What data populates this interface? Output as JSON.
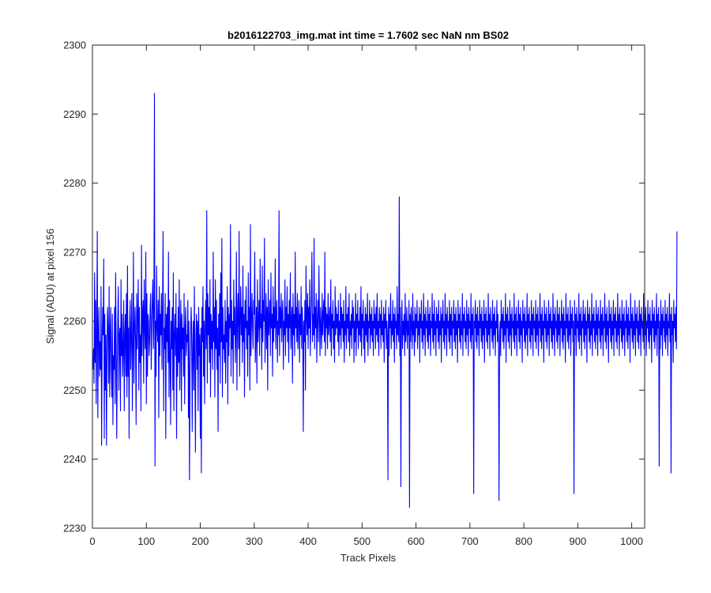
{
  "chart_data": {
    "type": "line",
    "title": "b2016122703_img.mat int time = 1.7602 sec  NaN nm BS02",
    "xlabel": "Track Pixels",
    "ylabel": "Signal (ADU) at pixel 156",
    "xlim": [
      0,
      1024
    ],
    "ylim": [
      2230,
      2300
    ],
    "x_ticks": [
      0,
      100,
      200,
      300,
      400,
      500,
      600,
      700,
      800,
      900,
      1000
    ],
    "y_ticks": [
      2230,
      2240,
      2250,
      2260,
      2270,
      2280,
      2290,
      2300
    ],
    "grid": false,
    "legend": "none",
    "series": [
      {
        "color": "#0000ff",
        "x_start": 1,
        "x_step": 1,
        "values": [
          2253,
          2256,
          2251,
          2267,
          2254,
          2263,
          2248,
          2258,
          2273,
          2246,
          2258,
          2262,
          2252,
          2257,
          2253,
          2265,
          2242,
          2256,
          2262,
          2258,
          2269,
          2243,
          2261,
          2250,
          2258,
          2242,
          2255,
          2262,
          2259,
          2251,
          2265,
          2249,
          2258,
          2262,
          2253,
          2249,
          2261,
          2245,
          2255,
          2253,
          2262,
          2248,
          2267,
          2257,
          2243,
          2254,
          2260,
          2265,
          2250,
          2258,
          2259,
          2247,
          2266,
          2255,
          2261,
          2252,
          2256,
          2263,
          2247,
          2258,
          2261,
          2252,
          2264,
          2249,
          2268,
          2252,
          2259,
          2243,
          2260,
          2263,
          2253,
          2258,
          2264,
          2247,
          2256,
          2270,
          2251,
          2259,
          2262,
          2257,
          2245,
          2264,
          2256,
          2261,
          2266,
          2250,
          2262,
          2254,
          2258,
          2247,
          2271,
          2255,
          2261,
          2263,
          2251,
          2266,
          2259,
          2256,
          2270,
          2248,
          2264,
          2252,
          2261,
          2260,
          2255,
          2257,
          2262,
          2264,
          2253,
          2259,
          2263,
          2266,
          2256,
          2261,
          2293,
          2239,
          2260,
          2252,
          2268,
          2259,
          2257,
          2263,
          2246,
          2265,
          2255,
          2261,
          2258,
          2264,
          2253,
          2262,
          2273,
          2247,
          2259,
          2256,
          2264,
          2243,
          2261,
          2257,
          2262,
          2254,
          2270,
          2249,
          2263,
          2255,
          2245,
          2260,
          2256,
          2262,
          2250,
          2267,
          2247,
          2258,
          2261,
          2255,
          2264,
          2243,
          2259,
          2252,
          2262,
          2254,
          2266,
          2250,
          2258,
          2263,
          2247,
          2261,
          2256,
          2259,
          2252,
          2264,
          2248,
          2259,
          2262,
          2255,
          2258,
          2257,
          2263,
          2246,
          2260,
          2237,
          2252,
          2257,
          2262,
          2259,
          2244,
          2256,
          2260,
          2250,
          2265,
          2254,
          2241,
          2258,
          2261,
          2253,
          2260,
          2247,
          2262,
          2255,
          2258,
          2243,
          2259,
          2238,
          2262,
          2257,
          2265,
          2252,
          2260,
          2248,
          2259,
          2263,
          2256,
          2276,
          2251,
          2264,
          2258,
          2262,
          2254,
          2266,
          2249,
          2261,
          2256,
          2260,
          2253,
          2270,
          2257,
          2262,
          2249,
          2266,
          2256,
          2263,
          2253,
          2259,
          2244,
          2261,
          2255,
          2264,
          2251,
          2267,
          2257,
          2272,
          2249,
          2262,
          2256,
          2258,
          2254,
          2263,
          2251,
          2260,
          2257,
          2265,
          2248,
          2262,
          2255,
          2261,
          2259,
          2274,
          2252,
          2263,
          2256,
          2260,
          2251,
          2266,
          2258,
          2262,
          2254,
          2259,
          2270,
          2250,
          2261,
          2264,
          2256,
          2273,
          2252,
          2260,
          2265,
          2258,
          2262,
          2254,
          2268,
          2257,
          2261,
          2249,
          2263,
          2259,
          2265,
          2256,
          2260,
          2252,
          2267,
          2258,
          2262,
          2250,
          2274,
          2255,
          2260,
          2264,
          2259,
          2256,
          2263,
          2261,
          2270,
          2254,
          2258,
          2262,
          2251,
          2266,
          2257,
          2260,
          2263,
          2255,
          2269,
          2259,
          2261,
          2253,
          2268,
          2257,
          2263,
          2260,
          2272,
          2254,
          2259,
          2264,
          2256,
          2262,
          2250,
          2266,
          2258,
          2260,
          2263,
          2255,
          2267,
          2259,
          2261,
          2252,
          2265,
          2257,
          2262,
          2259,
          2269,
          2256,
          2261,
          2263,
          2254,
          2260,
          2258,
          2276,
          2255,
          2262,
          2259,
          2264,
          2257,
          2261,
          2263,
          2253,
          2260,
          2258,
          2266,
          2255,
          2262,
          2259,
          2265,
          2257,
          2261,
          2254,
          2263,
          2259,
          2267,
          2256,
          2260,
          2262,
          2251,
          2264,
          2258,
          2261,
          2255,
          2270,
          2259,
          2262,
          2257,
          2264,
          2256,
          2260,
          2263,
          2254,
          2261,
          2258,
          2265,
          2256,
          2262,
          2259,
          2244,
          2260,
          2257,
          2263,
          2250,
          2268,
          2261,
          2258,
          2264,
          2256,
          2262,
          2259,
          2266,
          2255,
          2260,
          2263,
          2270,
          2257,
          2261,
          2258,
          2272,
          2256,
          2262,
          2259,
          2264,
          2254,
          2260,
          2263,
          2257,
          2268,
          2261,
          2255,
          2262,
          2259,
          2256,
          2264,
          2258,
          2261,
          2263,
          2257,
          2270,
          2255,
          2262,
          2259,
          2261,
          2256,
          2264,
          2258,
          2260,
          2262,
          2257,
          2266,
          2255,
          2261,
          2259,
          2263,
          2256,
          2260,
          2254,
          2265,
          2258,
          2262,
          2259,
          2261,
          2257,
          2263,
          2255,
          2260,
          2258,
          2264,
          2256,
          2262,
          2259,
          2261,
          2257,
          2263,
          2254,
          2260,
          2258,
          2265,
          2256,
          2261,
          2259,
          2262,
          2257,
          2264,
          2255,
          2260,
          2258,
          2261,
          2256,
          2263,
          2259,
          2262,
          2254,
          2260,
          2257,
          2264,
          2255,
          2261,
          2259,
          2263,
          2256,
          2260,
          2258,
          2262,
          2257,
          2265,
          2255,
          2261,
          2259,
          2263,
          2256,
          2260,
          2254,
          2262,
          2258,
          2261,
          2257,
          2264,
          2255,
          2260,
          2259,
          2263,
          2256,
          2261,
          2258,
          2262,
          2257,
          2260,
          2255,
          2263,
          2259,
          2261,
          2256,
          2262,
          2258,
          2264,
          2257,
          2260,
          2255,
          2262,
          2259,
          2261,
          2256,
          2263,
          2258,
          2260,
          2257,
          2262,
          2254,
          2261,
          2259,
          2263,
          2256,
          2260,
          2258,
          2237,
          2262,
          2255,
          2261,
          2259,
          2264,
          2256,
          2260,
          2258,
          2263,
          2257,
          2261,
          2254,
          2262,
          2259,
          2260,
          2256,
          2265,
          2258,
          2261,
          2257,
          2278,
          2255,
          2262,
          2236,
          2259,
          2263,
          2256,
          2260,
          2258,
          2261,
          2255,
          2264,
          2257,
          2259,
          2262,
          2256,
          2260,
          2258,
          2263,
          2233,
          2261,
          2257,
          2262,
          2259,
          2256,
          2264,
          2258,
          2260,
          2255,
          2262,
          2257,
          2261,
          2259,
          2263,
          2256,
          2260,
          2258,
          2262,
          2254,
          2261,
          2259,
          2263,
          2257,
          2260,
          2256,
          2264,
          2258,
          2261,
          2255,
          2262,
          2259,
          2260,
          2257,
          2263,
          2256,
          2261,
          2258,
          2262,
          2255,
          2260,
          2259,
          2264,
          2257,
          2261,
          2256,
          2263,
          2258,
          2260,
          2255,
          2262,
          2259,
          2261,
          2257,
          2263,
          2256,
          2260,
          2258,
          2262,
          2254,
          2261,
          2259,
          2263,
          2257,
          2260,
          2256,
          2264,
          2258,
          2261,
          2255,
          2262,
          2259,
          2260,
          2257,
          2263,
          2256,
          2261,
          2258,
          2262,
          2255,
          2260,
          2259,
          2263,
          2257,
          2261,
          2256,
          2262,
          2258,
          2260,
          2254,
          2263,
          2259,
          2261,
          2257,
          2262,
          2256,
          2260,
          2258,
          2264,
          2255,
          2261,
          2259,
          2262,
          2257,
          2260,
          2256,
          2263,
          2258,
          2261,
          2255,
          2262,
          2259,
          2260,
          2257,
          2264,
          2256,
          2261,
          2258,
          2262,
          2235,
          2260,
          2259,
          2263,
          2257,
          2261,
          2256,
          2262,
          2258,
          2260,
          2255,
          2263,
          2259,
          2261,
          2257,
          2262,
          2256,
          2260,
          2258,
          2263,
          2254,
          2261,
          2259,
          2262,
          2257,
          2260,
          2256,
          2264,
          2258,
          2261,
          2255,
          2262,
          2259,
          2260,
          2257,
          2263,
          2256,
          2261,
          2258,
          2262,
          2255,
          2260,
          2259,
          2263,
          2257,
          2261,
          2256,
          2234,
          2258,
          2260,
          2255,
          2263,
          2259,
          2261,
          2257,
          2262,
          2256,
          2260,
          2258,
          2264,
          2254,
          2261,
          2259,
          2262,
          2257,
          2260,
          2256,
          2263,
          2258,
          2261,
          2255,
          2262,
          2259,
          2260,
          2257,
          2264,
          2256,
          2261,
          2258,
          2262,
          2255,
          2260,
          2259,
          2263,
          2257,
          2261,
          2256,
          2262,
          2258,
          2260,
          2254,
          2263,
          2259,
          2261,
          2257,
          2262,
          2256,
          2260,
          2258,
          2264,
          2255,
          2261,
          2259,
          2262,
          2257,
          2260,
          2256,
          2263,
          2258,
          2261,
          2255,
          2262,
          2259,
          2260,
          2257,
          2263,
          2256,
          2261,
          2258,
          2262,
          2255,
          2260,
          2259,
          2264,
          2257,
          2261,
          2256,
          2262,
          2258,
          2260,
          2254,
          2263,
          2259,
          2261,
          2257,
          2262,
          2256,
          2260,
          2258,
          2263,
          2255,
          2261,
          2259,
          2262,
          2257,
          2260,
          2256,
          2264,
          2258,
          2261,
          2255,
          2262,
          2259,
          2260,
          2257,
          2263,
          2256,
          2261,
          2258,
          2262,
          2255,
          2260,
          2259,
          2263,
          2257,
          2261,
          2256,
          2262,
          2258,
          2260,
          2254,
          2264,
          2259,
          2261,
          2257,
          2262,
          2256,
          2260,
          2258,
          2263,
          2255,
          2261,
          2259,
          2262,
          2257,
          2260,
          2235,
          2263,
          2258,
          2261,
          2255,
          2262,
          2259,
          2260,
          2257,
          2264,
          2256,
          2261,
          2258,
          2262,
          2255,
          2260,
          2259,
          2263,
          2257,
          2261,
          2256,
          2262,
          2258,
          2260,
          2254,
          2263,
          2259,
          2261,
          2257,
          2262,
          2256,
          2260,
          2258,
          2264,
          2255,
          2261,
          2259,
          2262,
          2257,
          2260,
          2256,
          2263,
          2258,
          2261,
          2255,
          2262,
          2259,
          2260,
          2257,
          2263,
          2256,
          2261,
          2258,
          2262,
          2255,
          2260,
          2259,
          2264,
          2257,
          2261,
          2256,
          2262,
          2258,
          2260,
          2254,
          2263,
          2259,
          2261,
          2257,
          2262,
          2256,
          2260,
          2258,
          2263,
          2255,
          2261,
          2259,
          2262,
          2257,
          2260,
          2256,
          2264,
          2258,
          2261,
          2255,
          2262,
          2259,
          2260,
          2257,
          2263,
          2256,
          2261,
          2258,
          2262,
          2255,
          2260,
          2259,
          2263,
          2257,
          2261,
          2256,
          2262,
          2258,
          2260,
          2254,
          2264,
          2259,
          2261,
          2257,
          2262,
          2256,
          2260,
          2258,
          2263,
          2255,
          2261,
          2259,
          2262,
          2257,
          2260,
          2256,
          2263,
          2258,
          2261,
          2255,
          2262,
          2259,
          2260,
          2257,
          2264,
          2256,
          2261,
          2258,
          2262,
          2255,
          2260,
          2259,
          2263,
          2257,
          2261,
          2256,
          2262,
          2258,
          2260,
          2254,
          2263,
          2259,
          2261,
          2257,
          2262,
          2256,
          2260,
          2258,
          2264,
          2255,
          2261,
          2259,
          2262,
          2239,
          2260,
          2256,
          2263,
          2258,
          2261,
          2255,
          2262,
          2259,
          2260,
          2257,
          2263,
          2256,
          2261,
          2258,
          2262,
          2255,
          2260,
          2259,
          2264,
          2257,
          2261,
          2238,
          2262,
          2258,
          2260,
          2254,
          2263,
          2259,
          2261,
          2257,
          2262,
          2256,
          2273
        ]
      }
    ]
  }
}
